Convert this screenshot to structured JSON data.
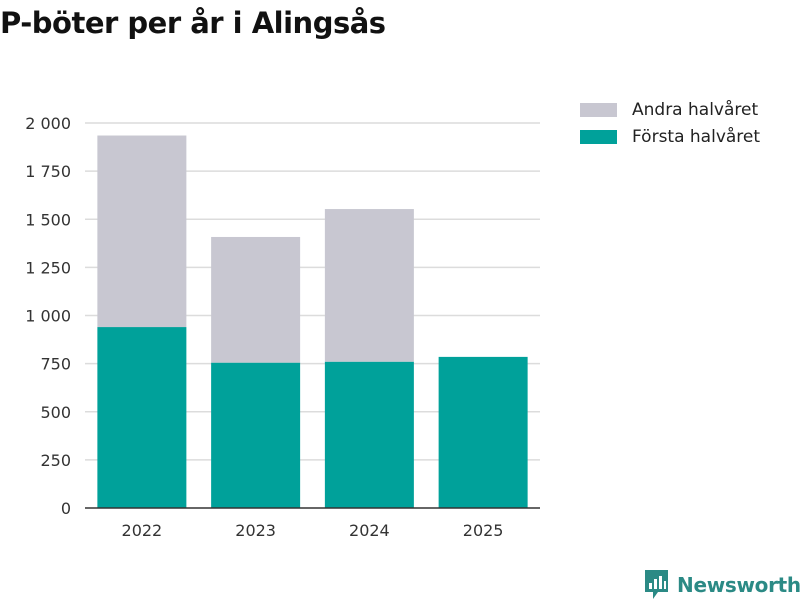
{
  "chart_data": {
    "type": "bar",
    "stacked": true,
    "title": "P-böter per år i Alingsås",
    "xlabel": "",
    "ylabel": "",
    "categories": [
      "2022",
      "2023",
      "2024",
      "2025"
    ],
    "series": [
      {
        "name": "Första halvåret",
        "values": [
          940,
          755,
          760,
          785
        ],
        "color": "#00a19a"
      },
      {
        "name": "Andra halvåret",
        "values": [
          995,
          653,
          793,
          null
        ],
        "color": "#c8c7d1"
      }
    ],
    "ylim": [
      0,
      2000
    ],
    "yticks": [
      0,
      250,
      500,
      750,
      1000,
      1250,
      1500,
      1750,
      2000
    ],
    "ytick_labels": [
      "0",
      "250",
      "500",
      "750",
      "1 000",
      "1 250",
      "1 500",
      "1 750",
      "2 000"
    ],
    "grid": true,
    "legend": {
      "placement": "top-right",
      "entries": [
        "Andra halvåret",
        "Första halvåret"
      ]
    }
  },
  "branding": {
    "name": "Newsworthy",
    "icon": "newsworthy-logo-icon",
    "color": "#2b8a85"
  }
}
